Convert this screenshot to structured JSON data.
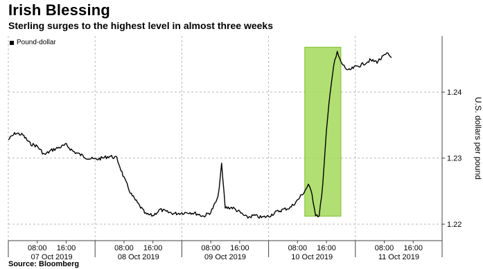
{
  "title": "Irish Blessing",
  "subtitle": "Sterling surges to the highest level in almost three weeks",
  "source": "Source: Bloomberg",
  "colors": {
    "line": "#000000",
    "highlight_fill": "#a3d95a",
    "highlight_stroke": "#7fbf2a",
    "grid": "#b8b8b8",
    "axis": "#444444"
  },
  "chart_data": {
    "type": "line",
    "title": "",
    "xlabel": "",
    "ylabel": "U.S. dollars per pound",
    "ylim": [
      1.2175,
      1.2485
    ],
    "yticks": [
      1.22,
      1.23,
      1.24
    ],
    "ytick_labels": [
      "1.22",
      "1.23",
      "1.24"
    ],
    "xlim": [
      "07 Oct 2019 00:00",
      "12 Oct 2019 00:00"
    ],
    "xtick_groups": [
      {
        "times": [
          "08:00",
          "16:00"
        ],
        "date": "07 Oct 2019"
      },
      {
        "times": [
          "08:00",
          "16:00"
        ],
        "date": "08 Oct 2019"
      },
      {
        "times": [
          "08:00",
          "16:00"
        ],
        "date": "09 Oct 2019"
      },
      {
        "times": [
          "08:00",
          "16:00"
        ],
        "date": "10 Oct 2019"
      },
      {
        "times": [
          "08:00",
          "16:00"
        ],
        "date": "11 Oct 2019"
      }
    ],
    "grid": "dashed vertical at day boundaries",
    "legend": "top-left",
    "highlight": {
      "x_start": "10 Oct 2019 10:00",
      "x_end": "10 Oct 2019 20:00",
      "y_range": [
        1.2212,
        1.2468
      ]
    },
    "series": [
      {
        "name": "Pound-dollar",
        "x": [
          "07 Oct 2019 00:00",
          "07 Oct 2019 02:00",
          "07 Oct 2019 04:00",
          "07 Oct 2019 06:00",
          "07 Oct 2019 08:00",
          "07 Oct 2019 10:00",
          "07 Oct 2019 12:00",
          "07 Oct 2019 14:00",
          "07 Oct 2019 16:00",
          "07 Oct 2019 18:00",
          "07 Oct 2019 20:00",
          "07 Oct 2019 22:00",
          "08 Oct 2019 00:00",
          "08 Oct 2019 02:00",
          "08 Oct 2019 04:00",
          "08 Oct 2019 06:00",
          "08 Oct 2019 08:00",
          "08 Oct 2019 10:00",
          "08 Oct 2019 12:00",
          "08 Oct 2019 14:00",
          "08 Oct 2019 16:00",
          "08 Oct 2019 18:00",
          "08 Oct 2019 20:00",
          "08 Oct 2019 22:00",
          "09 Oct 2019 00:00",
          "09 Oct 2019 02:00",
          "09 Oct 2019 04:00",
          "09 Oct 2019 06:00",
          "09 Oct 2019 08:00",
          "09 Oct 2019 10:00",
          "09 Oct 2019 11:00",
          "09 Oct 2019 12:00",
          "09 Oct 2019 14:00",
          "09 Oct 2019 16:00",
          "09 Oct 2019 18:00",
          "09 Oct 2019 20:00",
          "09 Oct 2019 22:00",
          "10 Oct 2019 00:00",
          "10 Oct 2019 02:00",
          "10 Oct 2019 04:00",
          "10 Oct 2019 06:00",
          "10 Oct 2019 08:00",
          "10 Oct 2019 10:00",
          "10 Oct 2019 11:00",
          "10 Oct 2019 12:00",
          "10 Oct 2019 13:00",
          "10 Oct 2019 14:00",
          "10 Oct 2019 15:00",
          "10 Oct 2019 16:00",
          "10 Oct 2019 17:00",
          "10 Oct 2019 18:00",
          "10 Oct 2019 19:00",
          "10 Oct 2019 20:00",
          "10 Oct 2019 22:00",
          "11 Oct 2019 00:00",
          "11 Oct 2019 02:00",
          "11 Oct 2019 04:00",
          "11 Oct 2019 06:00",
          "11 Oct 2019 08:00",
          "11 Oct 2019 09:00",
          "11 Oct 2019 10:00"
        ],
        "y": [
          1.2328,
          1.2338,
          1.2335,
          1.2322,
          1.2318,
          1.2305,
          1.2312,
          1.2316,
          1.232,
          1.231,
          1.2305,
          1.23,
          1.2298,
          1.23,
          1.2303,
          1.23,
          1.227,
          1.2245,
          1.223,
          1.2215,
          1.2213,
          1.2222,
          1.2218,
          1.2216,
          1.2217,
          1.2218,
          1.2216,
          1.2212,
          1.2218,
          1.224,
          1.229,
          1.2225,
          1.2225,
          1.2218,
          1.221,
          1.2213,
          1.221,
          1.2212,
          1.2218,
          1.2222,
          1.2225,
          1.2236,
          1.225,
          1.226,
          1.2245,
          1.2215,
          1.2212,
          1.226,
          1.234,
          1.24,
          1.244,
          1.246,
          1.2445,
          1.2432,
          1.2438,
          1.2442,
          1.2448,
          1.2446,
          1.2455,
          1.2458,
          1.2452
        ]
      }
    ]
  }
}
